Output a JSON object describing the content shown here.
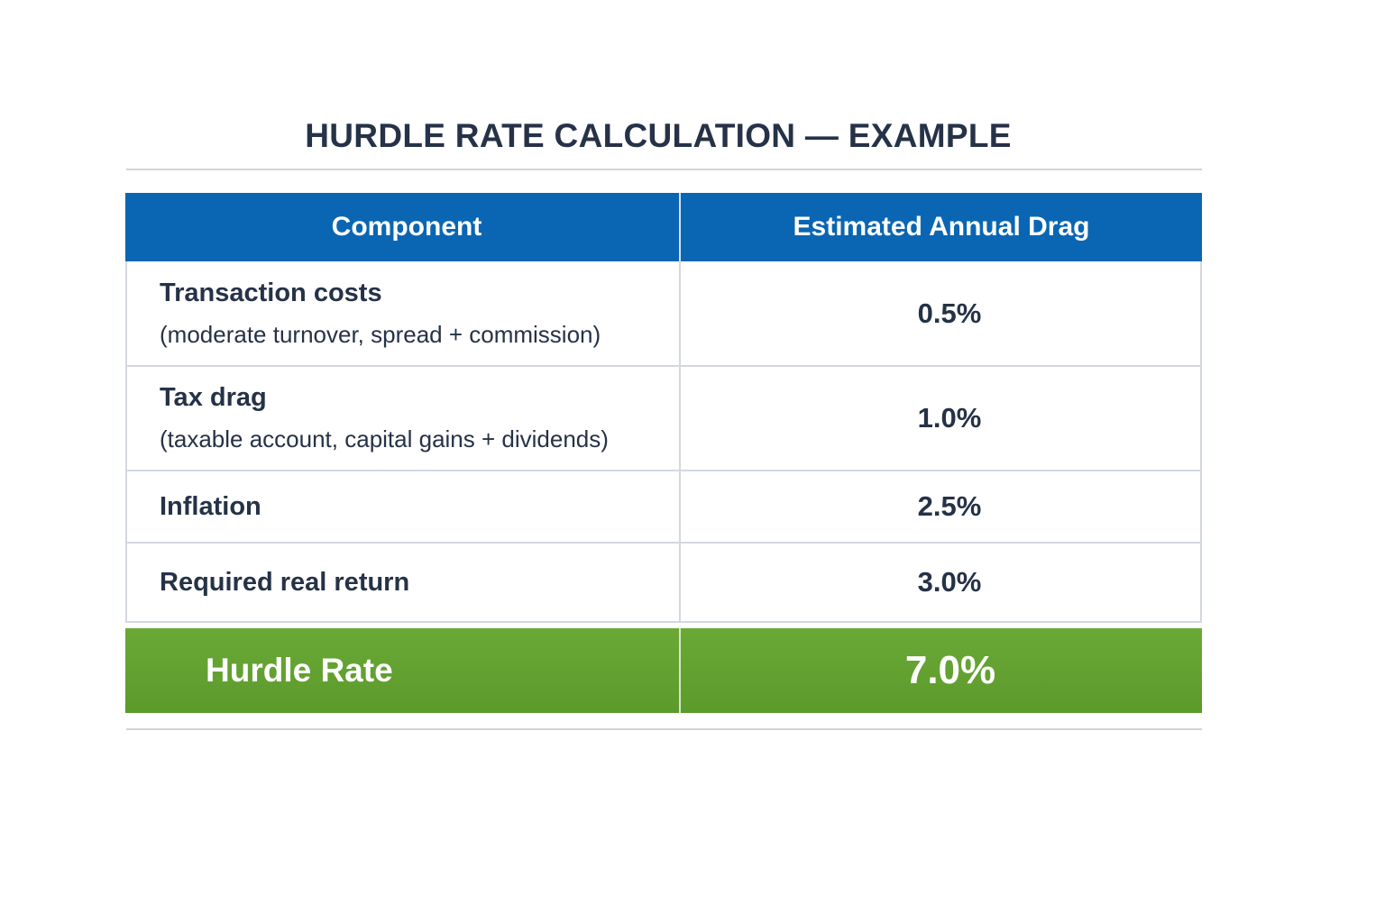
{
  "title": "HURDLE RATE CALCULATION — EXAMPLE",
  "table": {
    "headers": [
      "Component",
      "Estimated Annual Drag"
    ],
    "rows": [
      {
        "label": "Transaction costs",
        "sub": "(moderate turnover, spread + commission)",
        "value": "0.5%"
      },
      {
        "label": "Tax drag",
        "sub": "(taxable account, capital gains + dividends)",
        "value": "1.0%"
      },
      {
        "label": "Inflation",
        "sub": "",
        "value": "2.5%"
      },
      {
        "label": "Required real return",
        "sub": "",
        "value": "3.0%"
      }
    ],
    "total": {
      "label": "Hurdle Rate",
      "value": "7.0%"
    }
  },
  "colors": {
    "header": "#0a66b3",
    "total": "#62a231",
    "text": "#253247"
  }
}
